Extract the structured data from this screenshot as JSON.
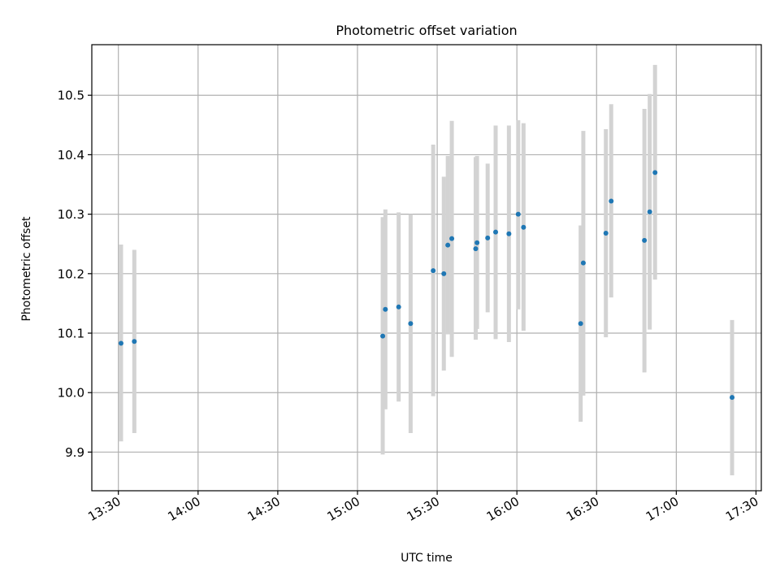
{
  "chart_data": {
    "type": "scatter",
    "title": "Photometric offset variation",
    "xlabel": "UTC time",
    "ylabel": "Photometric offset",
    "x_tick_labels": [
      "13:30",
      "14:00",
      "14:30",
      "15:00",
      "15:30",
      "16:00",
      "16:30",
      "17:00",
      "17:30"
    ],
    "x_ticks_minutes": [
      810,
      840,
      870,
      900,
      930,
      960,
      990,
      1020,
      1050
    ],
    "xlim_minutes": [
      800,
      1052
    ],
    "y_ticks": [
      9.9,
      10.0,
      10.1,
      10.2,
      10.3,
      10.4,
      10.5
    ],
    "ylim": [
      9.835,
      10.585
    ],
    "grid": true,
    "colors": {
      "point": "#1f77b4",
      "errorbar": "#d3d3d3",
      "grid": "#b0b0b0"
    },
    "points": [
      {
        "t": "13:31",
        "y": 10.083,
        "ylo": 9.918,
        "yhi": 10.249
      },
      {
        "t": "13:36",
        "y": 10.086,
        "ylo": 9.932,
        "yhi": 10.24
      },
      {
        "t": "15:09:30",
        "y": 10.095,
        "ylo": 9.896,
        "yhi": 10.295
      },
      {
        "t": "15:10:30",
        "y": 10.14,
        "ylo": 9.972,
        "yhi": 10.308
      },
      {
        "t": "15:15:30",
        "y": 10.144,
        "ylo": 9.985,
        "yhi": 10.303
      },
      {
        "t": "15:20",
        "y": 10.116,
        "ylo": 9.932,
        "yhi": 10.3
      },
      {
        "t": "15:28:30",
        "y": 10.205,
        "ylo": 9.994,
        "yhi": 10.417
      },
      {
        "t": "15:32:30",
        "y": 10.2,
        "ylo": 10.037,
        "yhi": 10.363
      },
      {
        "t": "15:34",
        "y": 10.248,
        "ylo": 10.098,
        "yhi": 10.398
      },
      {
        "t": "15:35:30",
        "y": 10.259,
        "ylo": 10.06,
        "yhi": 10.457
      },
      {
        "t": "15:44:30",
        "y": 10.242,
        "ylo": 10.089,
        "yhi": 10.396
      },
      {
        "t": "15:45",
        "y": 10.252,
        "ylo": 10.107,
        "yhi": 10.398
      },
      {
        "t": "15:49",
        "y": 10.26,
        "ylo": 10.135,
        "yhi": 10.385
      },
      {
        "t": "15:52",
        "y": 10.27,
        "ylo": 10.09,
        "yhi": 10.449
      },
      {
        "t": "15:57",
        "y": 10.267,
        "ylo": 10.085,
        "yhi": 10.449
      },
      {
        "t": "16:00:30",
        "y": 10.3,
        "ylo": 10.14,
        "yhi": 10.458
      },
      {
        "t": "16:02:30",
        "y": 10.278,
        "ylo": 10.104,
        "yhi": 10.453
      },
      {
        "t": "16:24",
        "y": 10.116,
        "ylo": 9.951,
        "yhi": 10.281
      },
      {
        "t": "16:25",
        "y": 10.218,
        "ylo": 9.995,
        "yhi": 10.44
      },
      {
        "t": "16:33:30",
        "y": 10.268,
        "ylo": 10.093,
        "yhi": 10.443
      },
      {
        "t": "16:35:30",
        "y": 10.322,
        "ylo": 10.16,
        "yhi": 10.485
      },
      {
        "t": "16:48",
        "y": 10.256,
        "ylo": 10.034,
        "yhi": 10.477
      },
      {
        "t": "16:50",
        "y": 10.304,
        "ylo": 10.106,
        "yhi": 10.502
      },
      {
        "t": "16:52",
        "y": 10.37,
        "ylo": 10.19,
        "yhi": 10.551
      },
      {
        "t": "17:21",
        "y": 9.992,
        "ylo": 9.861,
        "yhi": 10.122
      }
    ]
  }
}
